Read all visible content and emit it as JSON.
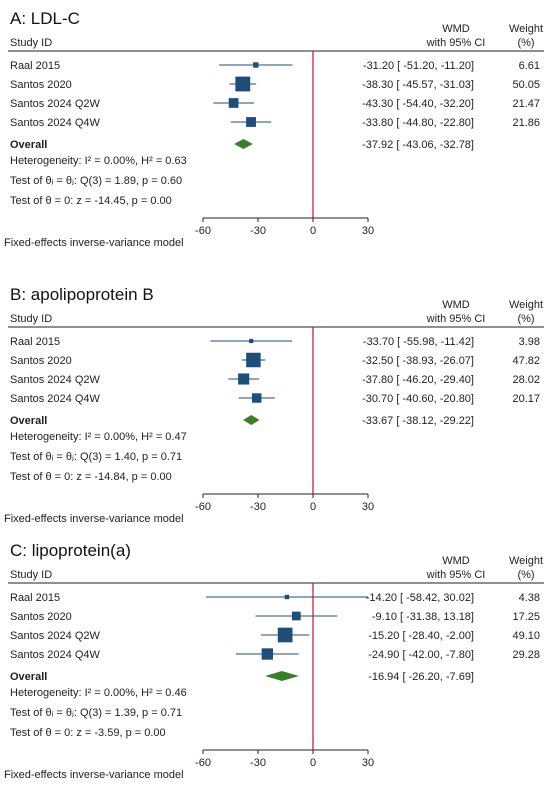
{
  "colors": {
    "marker": "#1f4e79",
    "diamond": "#3a7d2c",
    "null_line": "#c8102e",
    "rule": "#222222"
  },
  "headers": {
    "study": "Study ID",
    "wmd_line1": "WMD",
    "wmd_line2": "with 95% CI",
    "weight_line1": "Weight",
    "weight_line2": "(%)"
  },
  "xaxis": {
    "ticks": [
      -60,
      -30,
      0,
      30
    ],
    "tick_labels": [
      "-60",
      "-30",
      "0",
      "30"
    ],
    "xlim": [
      -60,
      30
    ]
  },
  "chart_data": [
    {
      "type": "forest",
      "title": "A: LDL-C",
      "studies": [
        {
          "label": "Raal 2015",
          "est": -31.2,
          "lo": -51.2,
          "hi": -11.2,
          "weight": 6.61,
          "ci_text": "-31.20 [  -51.20,  -11.20]",
          "weight_text": "6.61"
        },
        {
          "label": "Santos 2020",
          "est": -38.3,
          "lo": -45.57,
          "hi": -31.03,
          "weight": 50.05,
          "ci_text": "-38.30 [  -45.57,  -31.03]",
          "weight_text": "50.05"
        },
        {
          "label": "Santos 2024 Q2W",
          "est": -43.3,
          "lo": -54.4,
          "hi": -32.2,
          "weight": 21.47,
          "ci_text": "-43.30 [  -54.40,  -32.20]",
          "weight_text": "21.47"
        },
        {
          "label": "Santos 2024 Q4W",
          "est": -33.8,
          "lo": -44.8,
          "hi": -22.8,
          "weight": 21.86,
          "ci_text": "-33.80 [  -44.80,  -22.80]",
          "weight_text": "21.86"
        }
      ],
      "overall": {
        "label": "Overall",
        "est": -37.92,
        "lo": -43.06,
        "hi": -32.78,
        "ci_text": "-37.92 [  -43.06,  -32.78]"
      },
      "heterogeneity": "Heterogeneity: I² = 0.00%, H² = 0.63",
      "test_theta_i": "Test of θᵢ = θⱼ: Q(3) = 1.89, p = 0.60",
      "test_theta": "Test of θ = 0: z = -14.45, p = 0.00",
      "model_note": "Fixed-effects inverse-variance model"
    },
    {
      "type": "forest",
      "title": "B: apolipoprotein B",
      "studies": [
        {
          "label": "Raal 2015",
          "est": -33.7,
          "lo": -55.98,
          "hi": -11.42,
          "weight": 3.98,
          "ci_text": "-33.70 [  -55.98,  -11.42]",
          "weight_text": "3.98"
        },
        {
          "label": "Santos 2020",
          "est": -32.5,
          "lo": -38.93,
          "hi": -26.07,
          "weight": 47.82,
          "ci_text": "-32.50 [  -38.93,  -26.07]",
          "weight_text": "47.82"
        },
        {
          "label": "Santos 2024 Q2W",
          "est": -37.8,
          "lo": -46.2,
          "hi": -29.4,
          "weight": 28.02,
          "ci_text": "-37.80 [  -46.20,  -29.40]",
          "weight_text": "28.02"
        },
        {
          "label": "Santos 2024 Q4W",
          "est": -30.7,
          "lo": -40.6,
          "hi": -20.8,
          "weight": 20.17,
          "ci_text": "-30.70 [  -40.60,  -20.80]",
          "weight_text": "20.17"
        }
      ],
      "overall": {
        "label": "Overall",
        "est": -33.67,
        "lo": -38.12,
        "hi": -29.22,
        "ci_text": "-33.67 [  -38.12,  -29.22]"
      },
      "heterogeneity": "Heterogeneity: I² = 0.00%, H² = 0.47",
      "test_theta_i": "Test of θᵢ = θⱼ: Q(3) = 1.40, p = 0.71",
      "test_theta": "Test of θ = 0: z = -14.84, p = 0.00",
      "model_note": "Fixed-effects inverse-variance model"
    },
    {
      "type": "forest",
      "title": "C: lipoprotein(a)",
      "studies": [
        {
          "label": "Raal 2015",
          "est": -14.2,
          "lo": -58.42,
          "hi": 30.02,
          "weight": 4.38,
          "ci_text": "-14.20 [  -58.42,   30.02]",
          "weight_text": "4.38"
        },
        {
          "label": "Santos 2020",
          "est": -9.1,
          "lo": -31.38,
          "hi": 13.18,
          "weight": 17.25,
          "ci_text": "-9.10 [  -31.38,   13.18]",
          "weight_text": "17.25"
        },
        {
          "label": "Santos 2024 Q2W",
          "est": -15.2,
          "lo": -28.4,
          "hi": -2.0,
          "weight": 49.1,
          "ci_text": "-15.20 [  -28.40,   -2.00]",
          "weight_text": "49.10"
        },
        {
          "label": "Santos 2024 Q4W",
          "est": -24.9,
          "lo": -42.0,
          "hi": -7.8,
          "weight": 29.28,
          "ci_text": "-24.90 [  -42.00,   -7.80]",
          "weight_text": "29.28"
        }
      ],
      "overall": {
        "label": "Overall",
        "est": -16.94,
        "lo": -26.2,
        "hi": -7.69,
        "ci_text": "-16.94 [  -26.20,   -7.69]"
      },
      "heterogeneity": "Heterogeneity: I² = 0.00%, H² = 0.46",
      "test_theta_i": "Test of θᵢ = θⱼ: Q(3) = 1.39, p = 0.71",
      "test_theta": "Test of θ = 0: z = -3.59, p = 0.00",
      "model_note": "Fixed-effects inverse-variance model"
    }
  ]
}
